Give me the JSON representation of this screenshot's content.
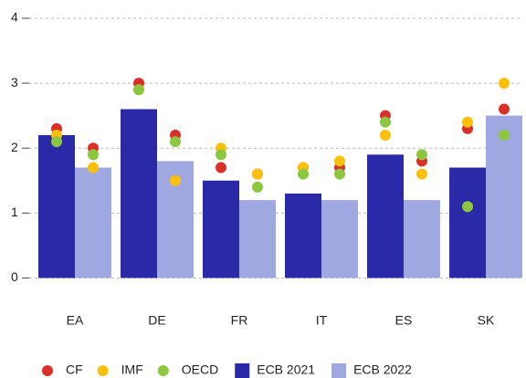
{
  "chart_data": {
    "type": "bar",
    "categories": [
      "EA",
      "DE",
      "FR",
      "IT",
      "ES",
      "SK"
    ],
    "series": [
      {
        "name": "ECB 2021",
        "color": "#2a2aa8",
        "values": [
          2.2,
          2.6,
          1.5,
          1.3,
          1.9,
          1.7
        ]
      },
      {
        "name": "ECB 2022",
        "color": "#a0a8e2",
        "values": [
          1.7,
          1.8,
          1.2,
          1.2,
          1.2,
          2.5
        ]
      }
    ],
    "points": [
      {
        "name": "CF",
        "color": "#d9302a",
        "values": [
          [
            2.3,
            2.0
          ],
          [
            3.0,
            2.2
          ],
          [
            1.7,
            1.6
          ],
          [
            1.7,
            1.7
          ],
          [
            2.5,
            1.8
          ],
          [
            2.3,
            2.6
          ]
        ]
      },
      {
        "name": "IMF",
        "color": "#fcc00a",
        "values": [
          [
            2.2,
            1.7
          ],
          [
            2.9,
            1.5
          ],
          [
            2.0,
            1.6
          ],
          [
            1.7,
            1.8
          ],
          [
            2.2,
            1.6
          ],
          [
            2.4,
            3.0
          ]
        ]
      },
      {
        "name": "OECD",
        "color": "#8dc63f",
        "values": [
          [
            2.1,
            1.9
          ],
          [
            2.9,
            2.1
          ],
          [
            1.9,
            1.4
          ],
          [
            1.6,
            1.6
          ],
          [
            2.4,
            1.9
          ],
          [
            1.1,
            2.2
          ]
        ]
      }
    ],
    "ylim": [
      -0.5,
      4
    ],
    "yticks": [
      0,
      1,
      2,
      3,
      4
    ],
    "grid": true
  }
}
